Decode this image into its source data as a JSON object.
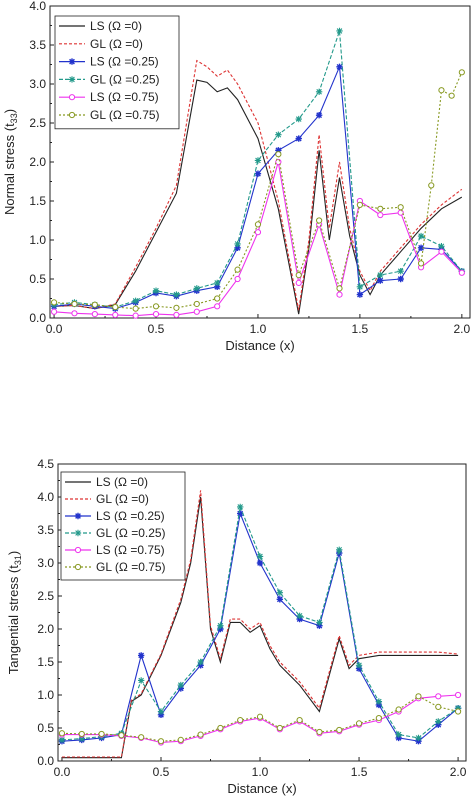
{
  "chart_data": [
    {
      "type": "line",
      "xlabel": "Distance (x)",
      "ylabel_main": "Normal stress (t",
      "ylabel_sub": "33",
      "ylabel_tail": ")",
      "xlim": [
        -0.02,
        2.04
      ],
      "ylim": [
        0,
        4.0
      ],
      "xticks": [
        "0.0",
        "0.5",
        "1.0",
        "1.5",
        "2.0"
      ],
      "yticks": [
        "0.0",
        "0.5",
        "1.0",
        "1.5",
        "2.0",
        "2.5",
        "3.0",
        "3.5",
        "4.0"
      ],
      "grid": false,
      "legend": "top-left",
      "series": [
        {
          "name": "LS (Ω =0)",
          "color": "#222222",
          "dash": "",
          "marker": "none",
          "x": [
            0,
            0.1,
            0.2,
            0.3,
            0.4,
            0.5,
            0.6,
            0.7,
            0.75,
            0.8,
            0.85,
            0.9,
            1.0,
            1.1,
            1.2,
            1.25,
            1.3,
            1.35,
            1.4,
            1.45,
            1.5,
            1.55,
            1.6,
            1.7,
            1.8,
            1.9,
            2.0
          ],
          "y": [
            0.15,
            0.16,
            0.12,
            0.17,
            0.6,
            1.1,
            1.6,
            3.05,
            3.02,
            2.9,
            2.95,
            2.8,
            2.3,
            1.4,
            0.05,
            0.9,
            2.15,
            1.0,
            1.8,
            1.05,
            0.55,
            0.3,
            0.55,
            0.85,
            1.15,
            1.4,
            1.55
          ]
        },
        {
          "name": "GL (Ω =0)",
          "color": "#dd3333",
          "dash": "3,2",
          "marker": "none",
          "x": [
            0,
            0.1,
            0.2,
            0.3,
            0.4,
            0.5,
            0.6,
            0.7,
            0.75,
            0.8,
            0.85,
            0.9,
            1.0,
            1.1,
            1.2,
            1.25,
            1.3,
            1.35,
            1.4,
            1.45,
            1.5,
            1.55,
            1.6,
            1.7,
            1.8,
            1.9,
            2.0
          ],
          "y": [
            0.15,
            0.16,
            0.12,
            0.18,
            0.65,
            1.15,
            1.7,
            3.3,
            3.22,
            3.1,
            3.18,
            3.0,
            2.5,
            1.5,
            0.1,
            1.0,
            2.35,
            1.15,
            2.0,
            1.15,
            0.6,
            0.35,
            0.6,
            0.9,
            1.2,
            1.45,
            1.65
          ]
        },
        {
          "name": "LS (Ω =0.25)",
          "color": "#2233cc",
          "dash": "",
          "marker": "star",
          "x": [
            0,
            0.1,
            0.2,
            0.3,
            0.4,
            0.5,
            0.6,
            0.7,
            0.8,
            0.9,
            1.0,
            1.1,
            1.2,
            1.3,
            1.4,
            1.5,
            1.6,
            1.7,
            1.8,
            1.9,
            2.0
          ],
          "y": [
            0.15,
            0.18,
            0.15,
            0.12,
            0.2,
            0.32,
            0.28,
            0.35,
            0.4,
            0.9,
            1.85,
            2.15,
            2.3,
            2.6,
            3.22,
            0.3,
            0.48,
            0.5,
            0.9,
            0.88,
            0.6
          ]
        },
        {
          "name": "GL (Ω =0.25)",
          "color": "#22998a",
          "dash": "4,2",
          "marker": "asterisk",
          "x": [
            0,
            0.1,
            0.2,
            0.3,
            0.4,
            0.5,
            0.6,
            0.7,
            0.8,
            0.9,
            1.0,
            1.1,
            1.2,
            1.3,
            1.4,
            1.5,
            1.6,
            1.7,
            1.8,
            1.9,
            2.0
          ],
          "y": [
            0.17,
            0.2,
            0.17,
            0.14,
            0.22,
            0.35,
            0.3,
            0.38,
            0.45,
            0.95,
            2.02,
            2.35,
            2.55,
            2.9,
            3.68,
            0.4,
            0.55,
            0.6,
            1.05,
            0.92,
            0.6
          ]
        },
        {
          "name": "LS (Ω =0.75)",
          "color": "#ee33ee",
          "dash": "",
          "marker": "circle",
          "x": [
            0,
            0.1,
            0.2,
            0.3,
            0.4,
            0.5,
            0.6,
            0.7,
            0.8,
            0.9,
            1.0,
            1.1,
            1.2,
            1.3,
            1.4,
            1.5,
            1.6,
            1.7,
            1.8,
            1.9,
            2.0
          ],
          "y": [
            0.08,
            0.06,
            0.05,
            0.04,
            0.03,
            0.05,
            0.04,
            0.08,
            0.15,
            0.5,
            1.1,
            2.0,
            0.45,
            1.2,
            0.3,
            1.5,
            1.32,
            1.35,
            0.65,
            0.85,
            0.58
          ]
        },
        {
          "name": "GL (Ω =0.75)",
          "color": "#889922",
          "dash": "2,2",
          "marker": "circle",
          "x": [
            0,
            0.1,
            0.2,
            0.3,
            0.4,
            0.5,
            0.6,
            0.7,
            0.8,
            0.9,
            1.0,
            1.1,
            1.2,
            1.3,
            1.4,
            1.5,
            1.6,
            1.7,
            1.8,
            1.85,
            1.9,
            1.95,
            2.0
          ],
          "y": [
            0.2,
            0.18,
            0.17,
            0.14,
            0.12,
            0.15,
            0.13,
            0.18,
            0.25,
            0.62,
            1.2,
            2.1,
            0.55,
            1.25,
            0.38,
            1.45,
            1.4,
            1.42,
            0.7,
            1.7,
            2.92,
            2.85,
            3.15
          ]
        }
      ]
    },
    {
      "type": "line",
      "xlabel": "Distance (x)",
      "ylabel_main": "Tangential stress (t",
      "ylabel_sub": "31",
      "ylabel_tail": ")",
      "xlim": [
        -0.02,
        2.04
      ],
      "ylim": [
        0,
        4.5
      ],
      "xticks": [
        "0.0",
        "0.5",
        "1.0",
        "1.5",
        "2.0"
      ],
      "yticks": [
        "0.0",
        "0.5",
        "1.0",
        "1.5",
        "2.0",
        "2.5",
        "3.0",
        "3.5",
        "4.0",
        "4.5"
      ],
      "grid": false,
      "legend": "top-left",
      "series": [
        {
          "name": "LS (Ω =0)",
          "color": "#222222",
          "dash": "",
          "marker": "none",
          "x": [
            0,
            0.1,
            0.2,
            0.3,
            0.35,
            0.4,
            0.5,
            0.6,
            0.65,
            0.7,
            0.75,
            0.8,
            0.85,
            0.9,
            0.95,
            1.0,
            1.05,
            1.1,
            1.2,
            1.3,
            1.4,
            1.45,
            1.5,
            1.6,
            1.7,
            1.8,
            1.9,
            2.0
          ],
          "y": [
            0.05,
            0.05,
            0.05,
            0.05,
            0.9,
            1.0,
            1.6,
            2.4,
            3.0,
            4.0,
            2.0,
            1.5,
            2.1,
            2.1,
            1.95,
            2.05,
            1.7,
            1.45,
            1.15,
            0.75,
            1.85,
            1.4,
            1.55,
            1.6,
            1.6,
            1.6,
            1.6,
            1.6
          ]
        },
        {
          "name": "GL (Ω =0)",
          "color": "#dd3333",
          "dash": "3,2",
          "marker": "none",
          "x": [
            0,
            0.1,
            0.2,
            0.3,
            0.35,
            0.4,
            0.5,
            0.6,
            0.65,
            0.7,
            0.75,
            0.8,
            0.85,
            0.9,
            0.95,
            1.0,
            1.05,
            1.1,
            1.2,
            1.3,
            1.4,
            1.45,
            1.5,
            1.6,
            1.7,
            1.8,
            1.9,
            2.0
          ],
          "y": [
            0.06,
            0.06,
            0.06,
            0.06,
            0.92,
            1.02,
            1.62,
            2.45,
            3.05,
            4.1,
            2.05,
            1.55,
            2.15,
            2.15,
            2.0,
            2.1,
            1.75,
            1.5,
            1.2,
            0.8,
            1.9,
            1.45,
            1.6,
            1.65,
            1.65,
            1.65,
            1.65,
            1.62
          ]
        },
        {
          "name": "LS (Ω =0.25)",
          "color": "#2233cc",
          "dash": "",
          "marker": "star",
          "x": [
            0,
            0.1,
            0.2,
            0.3,
            0.4,
            0.5,
            0.6,
            0.7,
            0.8,
            0.9,
            1.0,
            1.1,
            1.2,
            1.3,
            1.4,
            1.5,
            1.6,
            1.7,
            1.8,
            1.9,
            2.0
          ],
          "y": [
            0.3,
            0.32,
            0.35,
            0.4,
            1.6,
            0.7,
            1.1,
            1.45,
            2.0,
            3.75,
            3.0,
            2.45,
            2.15,
            2.05,
            3.15,
            1.4,
            0.85,
            0.35,
            0.3,
            0.55,
            0.8
          ]
        },
        {
          "name": "GL (Ω =0.25)",
          "color": "#22998a",
          "dash": "4,2",
          "marker": "asterisk",
          "x": [
            0,
            0.1,
            0.2,
            0.3,
            0.4,
            0.5,
            0.6,
            0.7,
            0.8,
            0.9,
            1.0,
            1.1,
            1.2,
            1.3,
            1.4,
            1.5,
            1.6,
            1.7,
            1.8,
            1.9,
            2.0
          ],
          "y": [
            0.32,
            0.34,
            0.37,
            0.42,
            1.22,
            0.75,
            1.15,
            1.5,
            2.05,
            3.85,
            3.1,
            2.55,
            2.2,
            2.1,
            3.2,
            1.45,
            0.9,
            0.4,
            0.35,
            0.6,
            0.8
          ]
        },
        {
          "name": "LS (Ω =0.75)",
          "color": "#ee33ee",
          "dash": "",
          "marker": "circle",
          "x": [
            0,
            0.1,
            0.2,
            0.3,
            0.4,
            0.5,
            0.6,
            0.7,
            0.8,
            0.9,
            1.0,
            1.1,
            1.2,
            1.3,
            1.4,
            1.5,
            1.6,
            1.7,
            1.8,
            1.9,
            2.0
          ],
          "y": [
            0.4,
            0.4,
            0.4,
            0.38,
            0.35,
            0.28,
            0.3,
            0.38,
            0.48,
            0.6,
            0.65,
            0.48,
            0.6,
            0.42,
            0.45,
            0.55,
            0.62,
            0.75,
            0.95,
            0.98,
            1.0
          ]
        },
        {
          "name": "GL (Ω =0.75)",
          "color": "#889922",
          "dash": "2,2",
          "marker": "circle",
          "x": [
            0,
            0.1,
            0.2,
            0.3,
            0.4,
            0.5,
            0.6,
            0.7,
            0.8,
            0.9,
            1.0,
            1.1,
            1.2,
            1.3,
            1.4,
            1.5,
            1.6,
            1.7,
            1.8,
            1.9,
            2.0
          ],
          "y": [
            0.42,
            0.41,
            0.41,
            0.39,
            0.36,
            0.3,
            0.32,
            0.4,
            0.5,
            0.62,
            0.67,
            0.5,
            0.62,
            0.44,
            0.47,
            0.57,
            0.65,
            0.78,
            0.98,
            0.82,
            0.75
          ]
        }
      ]
    }
  ]
}
